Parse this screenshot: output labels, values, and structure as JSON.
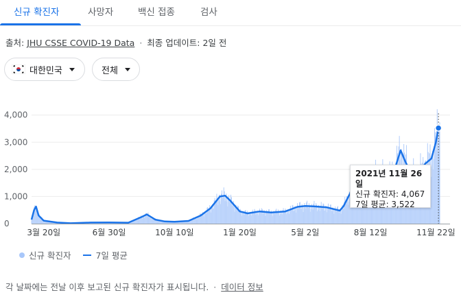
{
  "tabs": [
    {
      "label": "신규 확진자",
      "active": true
    },
    {
      "label": "사망자",
      "active": false
    },
    {
      "label": "백신 접종",
      "active": false
    },
    {
      "label": "검사",
      "active": false
    }
  ],
  "source": {
    "prefix": "출처:",
    "link": "JHU CSSE COVID-19 Data",
    "separator": "·",
    "updated": "최종 업데이트: 2일 전"
  },
  "filters": {
    "region": "대한민국",
    "scope": "전체",
    "flag_icon": "south-korea-flag-icon"
  },
  "colors": {
    "accent": "#1a73e8",
    "bar": "#a8c7fa",
    "line": "#1a73e8"
  },
  "chart_data": {
    "type": "area",
    "title": "",
    "y_tick_labels": [
      "0",
      "1,000",
      "2,000",
      "3,000",
      "4,000"
    ],
    "y_ticks": [
      0,
      1000,
      2000,
      3000,
      4000
    ],
    "ylim": [
      0,
      4700
    ],
    "x_range": [
      "2020-03-01",
      "2021-11-28"
    ],
    "x_tick_labels": [
      "3월 20일",
      "6월 30일",
      "10월 10일",
      "1월 20일",
      "5월 2일",
      "8월 12일",
      "11월 22일"
    ],
    "x_tick_dates": [
      "2020-03-20",
      "2020-06-30",
      "2020-10-10",
      "2021-01-20",
      "2021-05-02",
      "2021-08-12",
      "2021-11-22"
    ],
    "series": [
      {
        "name": "7일 평균",
        "points": [
          [
            "2020-03-01",
            150
          ],
          [
            "2020-03-05",
            500
          ],
          [
            "2020-03-08",
            630
          ],
          [
            "2020-03-12",
            300
          ],
          [
            "2020-03-20",
            110
          ],
          [
            "2020-04-10",
            40
          ],
          [
            "2020-05-01",
            15
          ],
          [
            "2020-06-01",
            40
          ],
          [
            "2020-06-30",
            45
          ],
          [
            "2020-07-30",
            35
          ],
          [
            "2020-08-20",
            250
          ],
          [
            "2020-08-28",
            340
          ],
          [
            "2020-09-10",
            150
          ],
          [
            "2020-09-25",
            80
          ],
          [
            "2020-10-10",
            70
          ],
          [
            "2020-11-01",
            100
          ],
          [
            "2020-11-20",
            300
          ],
          [
            "2020-12-05",
            560
          ],
          [
            "2020-12-20",
            1000
          ],
          [
            "2020-12-28",
            1030
          ],
          [
            "2021-01-05",
            850
          ],
          [
            "2021-01-20",
            450
          ],
          [
            "2021-02-01",
            380
          ],
          [
            "2021-02-20",
            450
          ],
          [
            "2021-03-10",
            410
          ],
          [
            "2021-04-01",
            450
          ],
          [
            "2021-04-20",
            620
          ],
          [
            "2021-05-02",
            650
          ],
          [
            "2021-05-15",
            640
          ],
          [
            "2021-06-05",
            600
          ],
          [
            "2021-06-25",
            480
          ],
          [
            "2021-07-01",
            650
          ],
          [
            "2021-07-15",
            1300
          ],
          [
            "2021-07-25",
            1500
          ],
          [
            "2021-08-12",
            1700
          ],
          [
            "2021-08-25",
            1820
          ],
          [
            "2021-09-10",
            1700
          ],
          [
            "2021-09-20",
            2100
          ],
          [
            "2021-09-28",
            2700
          ],
          [
            "2021-10-05",
            2300
          ],
          [
            "2021-10-15",
            1800
          ],
          [
            "2021-10-25",
            1800
          ],
          [
            "2021-11-05",
            2200
          ],
          [
            "2021-11-15",
            2400
          ],
          [
            "2021-11-22",
            3000
          ],
          [
            "2021-11-26",
            3522
          ]
        ]
      }
    ],
    "highlight": {
      "date": "2021-11-26",
      "new_cases": 4067,
      "avg7": 3522
    }
  },
  "tooltip": {
    "date": "2021년 11월 26일",
    "new_cases": "신규 확진자: 4,067",
    "avg7": "7일 평균: 3,522"
  },
  "legend": {
    "bars_label": "신규 확진자",
    "line_label": "7일 평균"
  },
  "footer": {
    "note": "각 날짜에는 전날 이후 보고된 신규 확진자가 표시됩니다.",
    "separator": "·",
    "link": "데이터 정보"
  }
}
